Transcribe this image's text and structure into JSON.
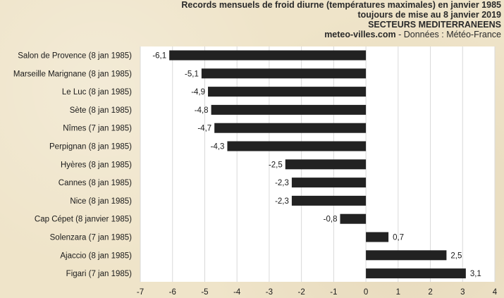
{
  "header": {
    "line1": "Records mensuels de froid diurne (températures maximales) en janvier 1985",
    "line2": "toujours de mise au 8 janvier 2019",
    "line3": "SECTEURS MEDITERRANEENS",
    "source_site": "meteo-villes.com",
    "source_rest": " - Données : Météo-France"
  },
  "colors": {
    "bar": "#222222",
    "plot_background": "#ffffff",
    "gridline": "#d9d9d9"
  },
  "chart_data": {
    "type": "bar",
    "orientation": "horizontal",
    "categories": [
      "Salon de Provence (8 jan 1985)",
      "Marseille Marignane (8 jan 1985)",
      "Le Luc (8 jan 1985)",
      "Sète (8 jan 1985)",
      "Nîmes (7 jan 1985)",
      "Perpignan (8 jan 1985)",
      "Hyères (8 jan 1985)",
      "Cannes (8 jan 1985)",
      "Nice (8 jan 1985)",
      "Cap Cépet (8 janvier 1985)",
      "Solenzara (7 jan 1985)",
      "Ajaccio (8 jan 1985)",
      "Figari (7 jan 1985)"
    ],
    "values": [
      -6.1,
      -5.1,
      -4.9,
      -4.8,
      -4.7,
      -4.3,
      -2.5,
      -2.3,
      -2.3,
      -0.8,
      0.7,
      2.5,
      3.1
    ],
    "value_labels": [
      "-6,1",
      "-5,1",
      "-4,9",
      "-4,8",
      "-4,7",
      "-4,3",
      "-2,5",
      "-2,3",
      "-2,3",
      "-0,8",
      "0,7",
      "2,5",
      "3,1"
    ],
    "xlim": [
      -7,
      4
    ],
    "x_ticks": [
      -7,
      -6,
      -5,
      -4,
      -3,
      -2,
      -1,
      0,
      1,
      2,
      3,
      4
    ],
    "grid": "vertical",
    "title": "Records mensuels de froid diurne (températures maximales) en janvier 1985",
    "subtitle": "toujours de mise au 8 janvier 2019",
    "xlabel": "",
    "ylabel": ""
  }
}
